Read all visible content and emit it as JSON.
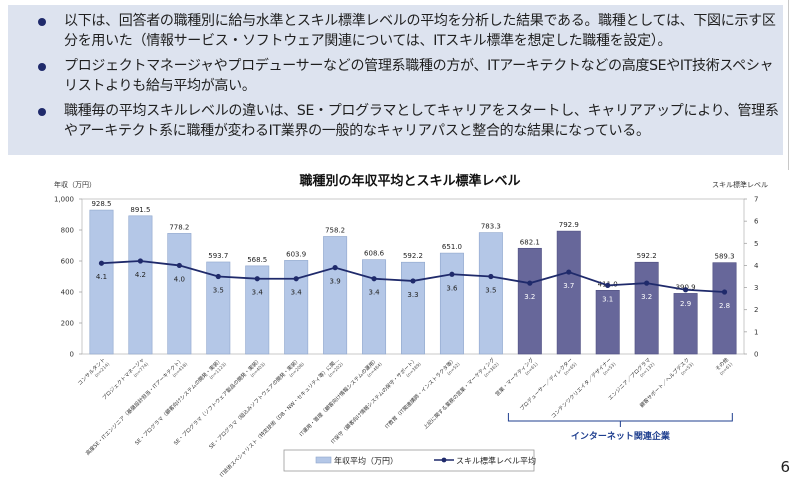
{
  "summary": {
    "bullets": [
      "以下は、回答者の職種別に給与水準とスキル標準レベルの平均を分析した結果である。職種としては、下図に示す区分を用いた（情報サービス・ソフトウェア関連については、ITスキル標準を想定した職種を設定）。",
      "プロジェクトマネージャやプロデューサーなどの管理系職種の方が、ITアーキテクトなどの高度SEやIT技術スペシャリストよりも給与平均が高い。",
      "職種毎の平均スキルレベルの違いは、SE・プログラマとしてキャリアをスタートし、キャリアアップにより、管理系やアーキテクト系に職種が変わるIT業界の一般的なキャリアパスと整合的な結果になっている。"
    ]
  },
  "colors": {
    "summary_bg": "#dde3ef",
    "bar_it": "#b4c7e7",
    "bar_internet": "#67679a",
    "line": "#1f2a6b",
    "bracket": "#1f3f8f"
  },
  "page_number": "6",
  "chart_data": {
    "type": "bar+line",
    "title": "職種別の年収平均とスキル標準レベル",
    "ylabel_left": "年収（万円）",
    "ylabel_right": "スキル標準レベル",
    "ylim_left": [
      0,
      1000
    ],
    "yticks_left": [
      "0",
      "200",
      "400",
      "600",
      "800",
      "1,000"
    ],
    "ylim_right": [
      0,
      7
    ],
    "yticks_right": [
      "0",
      "1",
      "2",
      "3",
      "4",
      "5",
      "6",
      "7"
    ],
    "grid": false,
    "legend_position": "bottom-center",
    "categories": [
      {
        "label": "コンサルタント",
        "n": "(n=214)",
        "group": "it"
      },
      {
        "label": "プロジェクトマネージャ",
        "n": "(n=774)",
        "group": "it"
      },
      {
        "label": "高度SE・ITエンジニア（基盤設計担当・ITアーキテクト）",
        "n": "(n=418)",
        "group": "it"
      },
      {
        "label": "SE・プログラマ（顧客向けシステムの開発・実装）",
        "n": "(n=1123)",
        "group": "it"
      },
      {
        "label": "SE・プログラマ（ソフトウェア製品の開発・実装）",
        "n": "(n=403)",
        "group": "it"
      },
      {
        "label": "SE・プログラマ（組込みソフトウェアの開発・実装）",
        "n": "(n=208)",
        "group": "it"
      },
      {
        "label": "IT技術スペシャリスト（特定技術（DB・NW・セキュリティ等）に関…",
        "n": "(n=202)",
        "group": "it"
      },
      {
        "label": "IT運用・管理（顧客向け情報システムの運用）",
        "n": "(n=484)",
        "group": "it"
      },
      {
        "label": "IT保守（顧客向け情報システムの保守・サポート）",
        "n": "(n=389)",
        "group": "it"
      },
      {
        "label": "IT教育（IT関連講師・インストラクタ等）",
        "n": "(n=52)",
        "group": "it"
      },
      {
        "label": "上記に関する業務の営業・マーケティング",
        "n": "(n=362)",
        "group": "it"
      },
      {
        "label": "営業・マーケティング",
        "n": "(n=61)",
        "group": "internet"
      },
      {
        "label": "プロデューサー／ディレクター",
        "n": "(n=65)",
        "group": "internet"
      },
      {
        "label": "コンテンツクリエイタ／デザイナー",
        "n": "(n=53)",
        "group": "internet"
      },
      {
        "label": "エンジニア／プログラマ",
        "n": "(n=132)",
        "group": "internet"
      },
      {
        "label": "顧客サポート／ヘルプデスク",
        "n": "(n=53)",
        "group": "internet"
      },
      {
        "label": "その他",
        "n": "(n=61)",
        "group": "internet"
      }
    ],
    "series": [
      {
        "name": "年収平均（万円）",
        "type": "bar",
        "axis": "left",
        "values": [
          928.5,
          891.5,
          778.2,
          593.7,
          568.5,
          603.9,
          758.2,
          608.6,
          592.2,
          651.0,
          783.3,
          682.1,
          792.9,
          411.0,
          592.2,
          390.9,
          589.3
        ],
        "labels": [
          "928.5",
          "891.5",
          "778.2",
          "593.7",
          "568.5",
          "603.9",
          "758.2",
          "608.6",
          "592.2",
          "651.0",
          "783.3",
          "682.1",
          "792.9",
          "411.0",
          "592.2",
          "390.9",
          "589.3"
        ]
      },
      {
        "name": "スキル標準レベル平均",
        "type": "line",
        "axis": "right",
        "values": [
          4.1,
          4.2,
          4.0,
          3.5,
          3.4,
          3.4,
          3.9,
          3.4,
          3.3,
          3.6,
          3.5,
          3.2,
          3.7,
          3.1,
          3.2,
          2.9,
          2.8
        ],
        "labels": [
          "4.1",
          "4.2",
          "4.0",
          "3.5",
          "3.4",
          "3.4",
          "3.9",
          "3.4",
          "3.3",
          "3.6",
          "3.5",
          "3.2",
          "3.7",
          "3.1",
          "3.2",
          "2.9",
          "2.8"
        ]
      }
    ],
    "annotations": [
      {
        "text": "インターネット関連企業",
        "applies_to_group": "internet",
        "style": "bracket"
      }
    ]
  }
}
